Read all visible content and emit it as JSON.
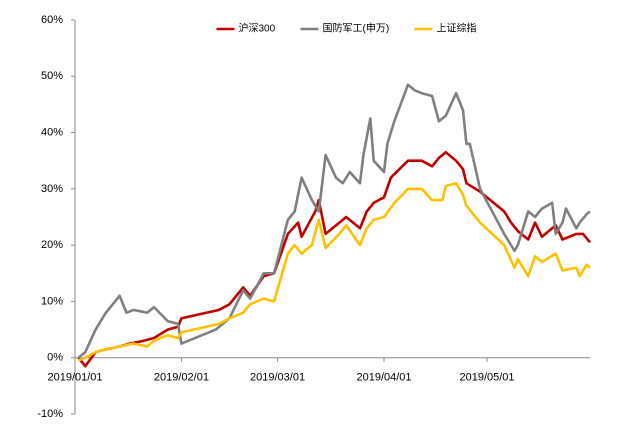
{
  "chart_data": {
    "type": "line",
    "xlim": [
      "2019/01/01",
      "2019/05/31"
    ],
    "xticks": [
      "2019/01/01",
      "2019/02/01",
      "2019/03/01",
      "2019/04/01",
      "2019/05/01"
    ],
    "ylim": [
      -10,
      60
    ],
    "yticks": [
      {
        "value": -10,
        "label": "-10%"
      },
      {
        "value": 0,
        "label": "0%"
      },
      {
        "value": 10,
        "label": "10%"
      },
      {
        "value": 20,
        "label": "20%"
      },
      {
        "value": 30,
        "label": "30%"
      },
      {
        "value": 40,
        "label": "40%"
      },
      {
        "value": 50,
        "label": "50%"
      },
      {
        "value": 60,
        "label": "60%"
      }
    ],
    "grid": false,
    "legend": "top",
    "series": [
      {
        "name": "沪深300",
        "color": "#c00000",
        "x": [
          "2019/01/02",
          "2019/01/04",
          "2019/01/07",
          "2019/01/10",
          "2019/01/14",
          "2019/01/17",
          "2019/01/21",
          "2019/01/24",
          "2019/01/28",
          "2019/01/31",
          "2019/02/01",
          "2019/02/12",
          "2019/02/15",
          "2019/02/19",
          "2019/02/21",
          "2019/02/25",
          "2019/02/28",
          "2019/03/04",
          "2019/03/07",
          "2019/03/08",
          "2019/03/12",
          "2019/03/13",
          "2019/03/15",
          "2019/03/19",
          "2019/03/21",
          "2019/03/25",
          "2019/03/27",
          "2019/03/29",
          "2019/04/01",
          "2019/04/03",
          "2019/04/08",
          "2019/04/12",
          "2019/04/15",
          "2019/04/17",
          "2019/04/19",
          "2019/04/22",
          "2019/04/24",
          "2019/04/25",
          "2019/04/29",
          "2019/05/06",
          "2019/05/08",
          "2019/05/10",
          "2019/05/13",
          "2019/05/15",
          "2019/05/17",
          "2019/05/21",
          "2019/05/23",
          "2019/05/27",
          "2019/05/29",
          "2019/05/31"
        ],
        "values": [
          0,
          -1.5,
          1,
          1.5,
          2,
          2.5,
          3,
          3.5,
          5,
          5.5,
          7,
          8.5,
          9.5,
          12.5,
          11,
          14.5,
          15,
          22,
          24,
          21.5,
          26,
          28,
          22,
          24,
          25,
          23,
          26,
          27.5,
          28.5,
          32,
          35,
          35,
          34,
          35.5,
          36.5,
          35,
          33.5,
          31,
          29.5,
          26,
          24,
          22.5,
          21,
          24,
          21.5,
          23.5,
          21,
          22,
          22,
          20.5
        ]
      },
      {
        "name": "国防军工(申万)",
        "color": "#808080",
        "x": [
          "2019/01/02",
          "2019/01/04",
          "2019/01/07",
          "2019/01/10",
          "2019/01/14",
          "2019/01/16",
          "2019/01/18",
          "2019/01/22",
          "2019/01/24",
          "2019/01/28",
          "2019/01/31",
          "2019/02/01",
          "2019/02/11",
          "2019/02/15",
          "2019/02/19",
          "2019/02/21",
          "2019/02/25",
          "2019/02/28",
          "2019/03/04",
          "2019/03/06",
          "2019/03/08",
          "2019/03/11",
          "2019/03/13",
          "2019/03/15",
          "2019/03/18",
          "2019/03/20",
          "2019/03/22",
          "2019/03/25",
          "2019/03/26",
          "2019/03/28",
          "2019/03/29",
          "2019/04/01",
          "2019/04/02",
          "2019/04/04",
          "2019/04/08",
          "2019/04/10",
          "2019/04/12",
          "2019/04/15",
          "2019/04/17",
          "2019/04/19",
          "2019/04/22",
          "2019/04/24",
          "2019/04/25",
          "2019/04/26",
          "2019/04/29",
          "2019/05/06",
          "2019/05/09",
          "2019/05/10",
          "2019/05/13",
          "2019/05/15",
          "2019/05/17",
          "2019/05/20",
          "2019/05/21",
          "2019/05/23",
          "2019/05/24",
          "2019/05/27",
          "2019/05/28",
          "2019/05/30",
          "2019/05/31"
        ],
        "values": [
          0,
          1,
          5,
          8,
          11,
          8,
          8.5,
          8,
          9,
          6.5,
          6,
          2.5,
          5,
          7,
          12,
          10.5,
          15,
          15,
          24.5,
          26,
          32,
          28,
          26,
          36,
          32,
          31,
          33,
          31,
          36,
          42.5,
          35,
          33,
          38,
          42,
          48.5,
          47.5,
          47,
          46.5,
          42,
          43,
          47,
          44,
          38,
          38,
          30,
          22,
          19,
          20,
          26,
          25,
          26.5,
          27.5,
          22,
          24,
          26.5,
          23,
          24,
          25.5,
          26
        ]
      },
      {
        "name": "上证综指",
        "color": "#ffc000",
        "x": [
          "2019/01/02",
          "2019/01/04",
          "2019/01/07",
          "2019/01/10",
          "2019/01/14",
          "2019/01/18",
          "2019/01/22",
          "2019/01/24",
          "2019/01/28",
          "2019/01/31",
          "2019/02/01",
          "2019/02/12",
          "2019/02/15",
          "2019/02/19",
          "2019/02/21",
          "2019/02/25",
          "2019/02/28",
          "2019/03/04",
          "2019/03/06",
          "2019/03/08",
          "2019/03/11",
          "2019/03/13",
          "2019/03/15",
          "2019/03/19",
          "2019/03/21",
          "2019/03/25",
          "2019/03/27",
          "2019/03/29",
          "2019/04/01",
          "2019/04/04",
          "2019/04/08",
          "2019/04/12",
          "2019/04/15",
          "2019/04/18",
          "2019/04/19",
          "2019/04/22",
          "2019/04/24",
          "2019/04/25",
          "2019/04/29",
          "2019/05/06",
          "2019/05/09",
          "2019/05/10",
          "2019/05/13",
          "2019/05/15",
          "2019/05/17",
          "2019/05/21",
          "2019/05/23",
          "2019/05/27",
          "2019/05/28",
          "2019/05/30",
          "2019/05/31"
        ],
        "values": [
          -0.5,
          0,
          1,
          1.5,
          2,
          2.5,
          2,
          3,
          4,
          3.5,
          4.5,
          6,
          7,
          8,
          9.5,
          10.5,
          10,
          18.5,
          20,
          18.5,
          20,
          24.5,
          19.5,
          22,
          23.5,
          20,
          23,
          24.5,
          25,
          27.5,
          30,
          30,
          28,
          28,
          30.5,
          31,
          29,
          27,
          24,
          20,
          16,
          17.5,
          14.5,
          18,
          17,
          18.5,
          15.5,
          16,
          14.5,
          16.5,
          16
        ]
      }
    ]
  }
}
